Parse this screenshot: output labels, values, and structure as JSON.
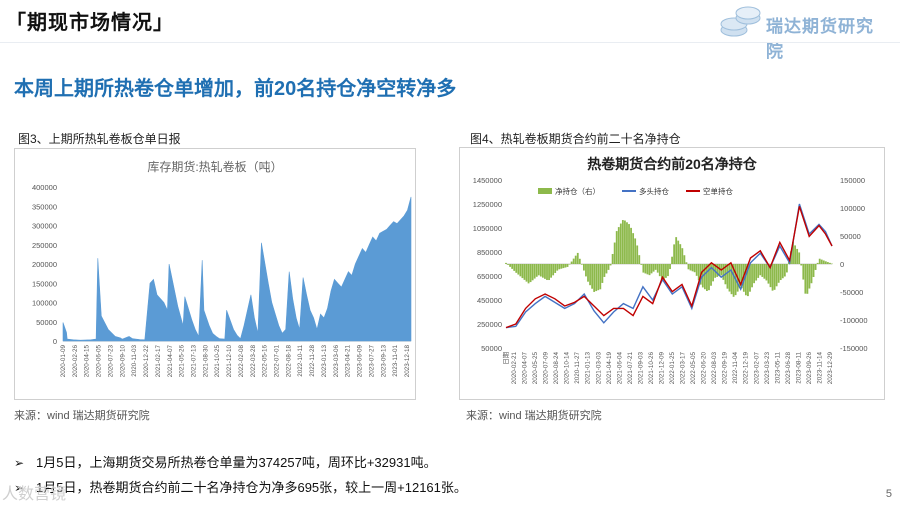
{
  "header": {
    "section_title": "「期现市场情况」",
    "logo_text": "瑞达期货研究院"
  },
  "headline": "本周上期所热卷仓单增加，前20名持仓净空转净多",
  "figure3": {
    "caption": "图3、上期所热轧卷板仓单日报",
    "source": "来源：wind   瑞达期货研究院",
    "chart_data": {
      "type": "area",
      "title": "库存期货:热轧卷板（吨）",
      "ylim": [
        0,
        400000
      ],
      "y_ticks": [
        0,
        50000,
        100000,
        150000,
        200000,
        250000,
        300000,
        350000,
        400000
      ],
      "x_ticks": [
        "2020-01-09",
        "2020-02-26",
        "2020-04-15",
        "2020-06-05",
        "2020-07-23",
        "2020-09-10",
        "2020-11-03",
        "2020-12-22",
        "2021-02-17",
        "2021-04-07",
        "2021-05-26",
        "2021-07-13",
        "2021-08-30",
        "2021-10-25",
        "2021-12-10",
        "2022-02-08",
        "2022-03-28",
        "2022-05-16",
        "2022-07-01",
        "2022-08-18",
        "2022-10-11",
        "2022-11-28",
        "2023-01-13",
        "2023-03-06",
        "2023-04-21",
        "2023-06-09",
        "2023-07-27",
        "2023-09-13",
        "2023-11-01",
        "2023-12-18"
      ],
      "color": "#5b9bd5",
      "series": [
        {
          "x": [
            0,
            0.01,
            0.012,
            0.03,
            0.05,
            0.08,
            0.095,
            0.1,
            0.11,
            0.13,
            0.15,
            0.165,
            0.17,
            0.19,
            0.2,
            0.22,
            0.235,
            0.25,
            0.26,
            0.27,
            0.29,
            0.3,
            0.305,
            0.33,
            0.345,
            0.35,
            0.37,
            0.38,
            0.39,
            0.4,
            0.405,
            0.42,
            0.43,
            0.44,
            0.45,
            0.465,
            0.47,
            0.49,
            0.5,
            0.51,
            0.52,
            0.54,
            0.55,
            0.56,
            0.57,
            0.59,
            0.6,
            0.61,
            0.62,
            0.63,
            0.64,
            0.65,
            0.66,
            0.67,
            0.68,
            0.69,
            0.7,
            0.71,
            0.72,
            0.73,
            0.74,
            0.75,
            0.76,
            0.77,
            0.78,
            0.79,
            0.8,
            0.81,
            0.82,
            0.83,
            0.84,
            0.85,
            0.86,
            0.87,
            0.88,
            0.89,
            0.9,
            0.91,
            0.92,
            0.93,
            0.94,
            0.95,
            0.96,
            0.97,
            0.98,
            0.99,
            1.0
          ],
          "values": [
            48000,
            22000,
            5000,
            3000,
            2000,
            3000,
            5000,
            215000,
            65000,
            30000,
            12000,
            8000,
            5000,
            12000,
            6000,
            4000,
            3000,
            150000,
            160000,
            120000,
            100000,
            80000,
            200000,
            90000,
            40000,
            115000,
            55000,
            30000,
            12000,
            210000,
            80000,
            40000,
            20000,
            12000,
            6000,
            5000,
            80000,
            30000,
            15000,
            6000,
            40000,
            120000,
            60000,
            20000,
            255000,
            150000,
            100000,
            70000,
            40000,
            20000,
            30000,
            180000,
            110000,
            60000,
            30000,
            165000,
            120000,
            80000,
            60000,
            30000,
            70000,
            60000,
            85000,
            130000,
            160000,
            150000,
            140000,
            160000,
            180000,
            170000,
            200000,
            220000,
            240000,
            230000,
            250000,
            270000,
            260000,
            280000,
            285000,
            290000,
            300000,
            310000,
            305000,
            315000,
            325000,
            340000,
            374257
          ]
        }
      ]
    }
  },
  "figure4": {
    "caption": "图4、热轧卷板期货合约前二十名净持仓",
    "source": "来源：wind   瑞达期货研究院",
    "chart_data": {
      "type": "line",
      "title": "热卷期货合约前20名净持仓",
      "legend": [
        "净持仓（右）",
        "多头持仓",
        "空单持仓"
      ],
      "ylim": [
        50000,
        1450000
      ],
      "y_ticks": [
        50000,
        250000,
        450000,
        650000,
        850000,
        1050000,
        1250000,
        1450000
      ],
      "y2lim": [
        -150000,
        150000
      ],
      "y2_ticks": [
        -150000,
        -100000,
        -50000,
        0,
        50000,
        100000,
        150000
      ],
      "x_first_label": "日期",
      "x_ticks": [
        "2020-02-21",
        "2020-04-07",
        "2020-05-25",
        "2020-07-09",
        "2020-08-24",
        "2020-10-14",
        "2020-11-27",
        "2021-01-13",
        "2021-03-03",
        "2021-04-19",
        "2021-06-04",
        "2021-07-21",
        "2021-09-03",
        "2021-10-26",
        "2021-12-09",
        "2022-01-25",
        "2022-03-17",
        "2022-05-05",
        "2022-06-20",
        "2022-08-03",
        "2022-09-19",
        "2022-11-04",
        "2022-12-19",
        "2023-02-07",
        "2023-03-23",
        "2023-05-11",
        "2023-06-28",
        "2023-08-11",
        "2023-09-26",
        "2023-11-14",
        "2023-12-29"
      ],
      "series": [
        {
          "name": "净持仓（右）",
          "color": "#8db94b",
          "x": [
            0,
            0.03,
            0.05,
            0.07,
            0.1,
            0.13,
            0.16,
            0.19,
            0.22,
            0.25,
            0.27,
            0.29,
            0.3,
            0.32,
            0.34,
            0.36,
            0.38,
            0.4,
            0.42,
            0.44,
            0.46,
            0.48,
            0.5,
            0.52,
            0.54,
            0.56,
            0.58,
            0.6,
            0.62,
            0.64,
            0.66,
            0.68,
            0.7,
            0.72,
            0.74,
            0.76,
            0.78,
            0.8,
            0.82,
            0.84,
            0.86,
            0.88,
            0.9,
            0.92,
            0.94,
            0.96,
            0.98,
            1.0
          ],
          "values": [
            2000,
            -15000,
            -25000,
            -35000,
            -20000,
            -30000,
            -10000,
            -5000,
            20000,
            -30000,
            -50000,
            -45000,
            -25000,
            -5000,
            60000,
            80000,
            70000,
            40000,
            -15000,
            -20000,
            -10000,
            -30000,
            -20000,
            50000,
            30000,
            -10000,
            -15000,
            -40000,
            -50000,
            -25000,
            -20000,
            -45000,
            -60000,
            -40000,
            -60000,
            -35000,
            -20000,
            -30000,
            -50000,
            -30000,
            -20000,
            40000,
            20000,
            -60000,
            -30000,
            10000,
            5000,
            695
          ]
        },
        {
          "name": "多头持仓",
          "color": "#4472c4",
          "x": [
            0,
            0.03,
            0.06,
            0.09,
            0.12,
            0.15,
            0.18,
            0.21,
            0.24,
            0.27,
            0.3,
            0.33,
            0.36,
            0.39,
            0.42,
            0.45,
            0.48,
            0.51,
            0.54,
            0.57,
            0.6,
            0.63,
            0.66,
            0.69,
            0.72,
            0.75,
            0.78,
            0.81,
            0.84,
            0.87,
            0.9,
            0.93,
            0.96,
            0.98,
            1.0
          ],
          "values": [
            220000,
            230000,
            350000,
            420000,
            480000,
            430000,
            380000,
            420000,
            500000,
            360000,
            260000,
            350000,
            420000,
            380000,
            560000,
            450000,
            620000,
            500000,
            560000,
            380000,
            640000,
            720000,
            640000,
            700000,
            540000,
            760000,
            840000,
            720000,
            900000,
            760000,
            1250000,
            1000000,
            1080000,
            1020000,
            900000
          ]
        },
        {
          "name": "空单持仓",
          "color": "#c00000",
          "x": [
            0,
            0.03,
            0.06,
            0.09,
            0.12,
            0.15,
            0.18,
            0.21,
            0.24,
            0.27,
            0.3,
            0.33,
            0.36,
            0.39,
            0.42,
            0.45,
            0.48,
            0.51,
            0.54,
            0.57,
            0.6,
            0.63,
            0.66,
            0.69,
            0.72,
            0.75,
            0.78,
            0.81,
            0.84,
            0.87,
            0.9,
            0.93,
            0.96,
            0.98,
            1.0
          ],
          "values": [
            220000,
            250000,
            380000,
            460000,
            500000,
            460000,
            400000,
            430000,
            480000,
            400000,
            320000,
            380000,
            380000,
            320000,
            480000,
            420000,
            640000,
            520000,
            580000,
            400000,
            680000,
            760000,
            700000,
            760000,
            580000,
            800000,
            860000,
            720000,
            930000,
            780000,
            1230000,
            980000,
            1070000,
            1000000,
            900000
          ]
        }
      ]
    }
  },
  "bullets": [
    "1月5日，上海期货交易所热卷仓单量为374257吨，周环比+32931吨。",
    "1月5日，热卷期货合约前二十名净持仓为净多695张，较上一周+12161张。"
  ],
  "bullet_mark": "➢",
  "watermark": "人数营镜",
  "page_number": "5"
}
